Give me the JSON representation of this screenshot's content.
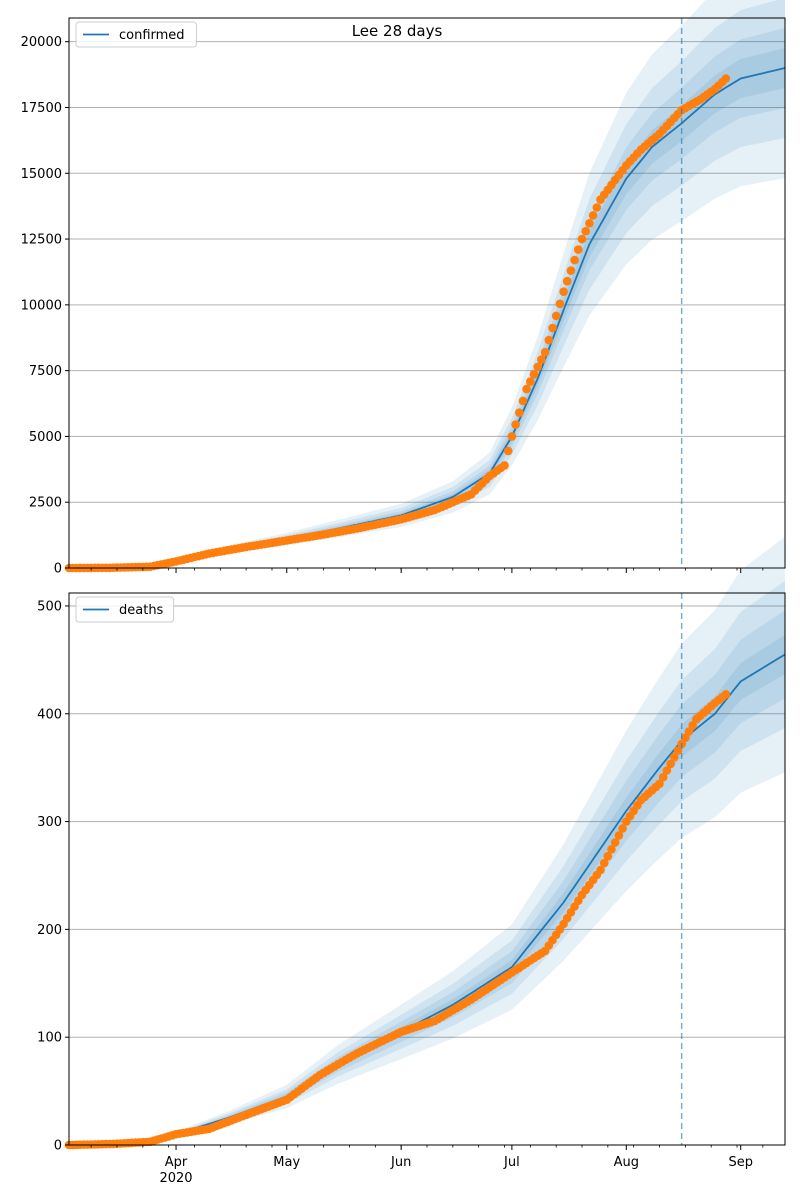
{
  "title": "Lee 28 days",
  "colors": {
    "model_line": "#1f77b4",
    "band": "#1f77b4",
    "observed": "#ff7f0e",
    "grid": "#b0b0b0",
    "cutoff": "#1f77b4"
  },
  "chart_data": [
    {
      "type": "line",
      "legend": "confirmed",
      "legend_placement": "top-left",
      "grid": "y",
      "x_range": [
        "2020-03-03",
        "2020-09-13"
      ],
      "x_ticks": [
        {
          "date": "2020-04-01",
          "label": "Apr",
          "sublabel": "2020"
        },
        {
          "date": "2020-05-01",
          "label": "May"
        },
        {
          "date": "2020-06-01",
          "label": "Jun"
        },
        {
          "date": "2020-07-01",
          "label": "Jul"
        },
        {
          "date": "2020-08-01",
          "label": "Aug"
        },
        {
          "date": "2020-09-01",
          "label": "Sep"
        }
      ],
      "y_range": [
        0,
        20900
      ],
      "y_ticks": [
        0,
        2500,
        5000,
        7500,
        10000,
        12500,
        15000,
        17500,
        20000
      ],
      "forecast_start": "2020-08-16",
      "model": {
        "dates": [
          "2020-03-03",
          "2020-03-20",
          "2020-04-01",
          "2020-04-15",
          "2020-05-01",
          "2020-05-15",
          "2020-06-01",
          "2020-06-15",
          "2020-06-25",
          "2020-07-01",
          "2020-07-08",
          "2020-07-15",
          "2020-07-22",
          "2020-08-01",
          "2020-08-08",
          "2020-08-16",
          "2020-08-25",
          "2020-09-01",
          "2020-09-13"
        ],
        "median": [
          0,
          60,
          250,
          700,
          1100,
          1500,
          2000,
          2700,
          3600,
          5000,
          7200,
          9800,
          12300,
          14800,
          16000,
          16900,
          18000,
          18600,
          19000
        ],
        "band_widths": [
          0.04,
          0.08,
          0.14,
          0.22
        ]
      },
      "observed": {
        "dates": [
          "2020-03-03",
          "2020-03-15",
          "2020-03-25",
          "2020-04-01",
          "2020-04-10",
          "2020-04-20",
          "2020-05-01",
          "2020-05-10",
          "2020-05-20",
          "2020-06-01",
          "2020-06-10",
          "2020-06-20",
          "2020-06-25",
          "2020-06-29",
          "2020-07-01",
          "2020-07-05",
          "2020-07-10",
          "2020-07-15",
          "2020-07-20",
          "2020-07-25",
          "2020-08-01",
          "2020-08-05",
          "2020-08-10",
          "2020-08-16",
          "2020-08-21",
          "2020-08-25",
          "2020-08-28"
        ],
        "values": [
          0,
          10,
          50,
          250,
          550,
          800,
          1050,
          1250,
          1500,
          1850,
          2200,
          2800,
          3500,
          3900,
          5000,
          6800,
          8200,
          10500,
          12500,
          14000,
          15300,
          15900,
          16500,
          17400,
          17800,
          18200,
          18600
        ]
      }
    },
    {
      "type": "line",
      "legend": "deaths",
      "legend_placement": "top-left",
      "grid": "y",
      "x_range": [
        "2020-03-03",
        "2020-09-13"
      ],
      "x_ticks": [
        {
          "date": "2020-04-01",
          "label": "Apr",
          "sublabel": "2020"
        },
        {
          "date": "2020-05-01",
          "label": "May"
        },
        {
          "date": "2020-06-01",
          "label": "Jun"
        },
        {
          "date": "2020-07-01",
          "label": "Jul"
        },
        {
          "date": "2020-08-01",
          "label": "Aug"
        },
        {
          "date": "2020-09-01",
          "label": "Sep"
        }
      ],
      "y_range": [
        0,
        512
      ],
      "y_ticks": [
        0,
        100,
        200,
        300,
        400,
        500
      ],
      "forecast_start": "2020-08-16",
      "model": {
        "dates": [
          "2020-03-03",
          "2020-03-20",
          "2020-04-01",
          "2020-04-15",
          "2020-05-01",
          "2020-05-15",
          "2020-06-01",
          "2020-06-15",
          "2020-07-01",
          "2020-07-15",
          "2020-08-01",
          "2020-08-10",
          "2020-08-16",
          "2020-08-25",
          "2020-09-01",
          "2020-09-13"
        ],
        "median": [
          0,
          3,
          10,
          25,
          45,
          75,
          105,
          130,
          165,
          225,
          310,
          350,
          375,
          400,
          430,
          455
        ],
        "band_widths": [
          0.04,
          0.09,
          0.15,
          0.24
        ]
      },
      "observed": {
        "dates": [
          "2020-03-03",
          "2020-03-15",
          "2020-03-25",
          "2020-04-01",
          "2020-04-10",
          "2020-04-20",
          "2020-05-01",
          "2020-05-10",
          "2020-05-20",
          "2020-06-01",
          "2020-06-10",
          "2020-06-20",
          "2020-07-01",
          "2020-07-10",
          "2020-07-15",
          "2020-07-20",
          "2020-07-25",
          "2020-08-01",
          "2020-08-05",
          "2020-08-10",
          "2020-08-16",
          "2020-08-20",
          "2020-08-25",
          "2020-08-28"
        ],
        "values": [
          0,
          1,
          3,
          10,
          15,
          28,
          42,
          65,
          85,
          105,
          115,
          135,
          160,
          180,
          205,
          232,
          255,
          300,
          320,
          335,
          372,
          395,
          410,
          418
        ]
      }
    }
  ]
}
